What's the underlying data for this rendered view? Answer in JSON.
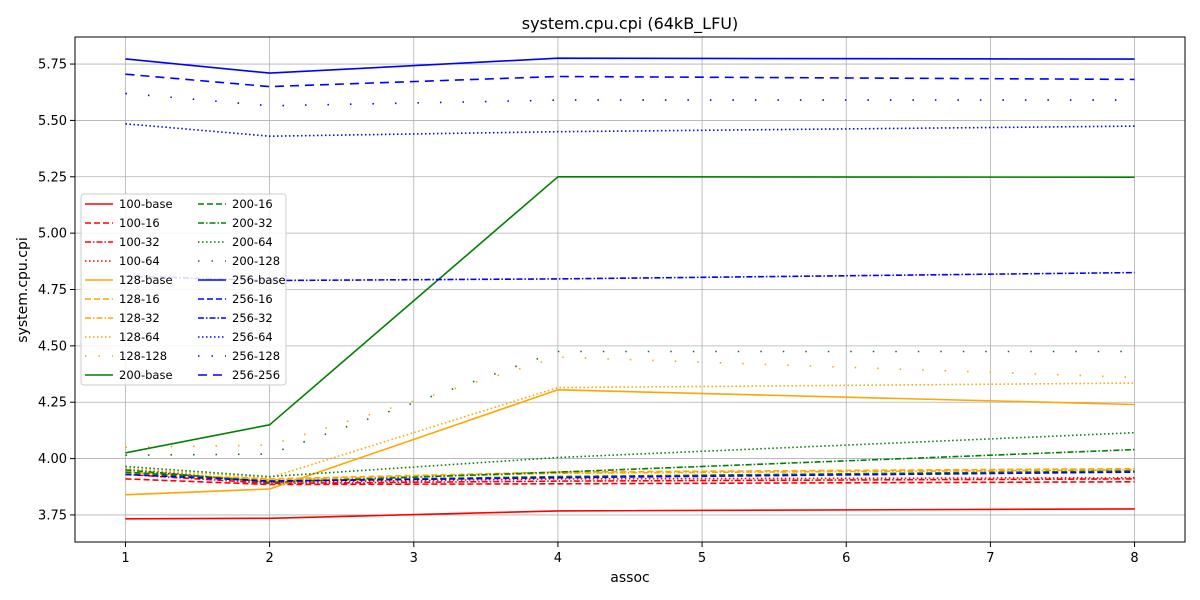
{
  "chart_data": {
    "type": "line",
    "title": "system.cpu.cpi (64kB_LFU)",
    "xlabel": "assoc",
    "ylabel": "system.cpu.cpi",
    "x": [
      1,
      2,
      4,
      8
    ],
    "xticks": [
      "1",
      "2",
      "3",
      "4",
      "5",
      "6",
      "7",
      "8"
    ],
    "yticks": [
      "3.75",
      "4.00",
      "4.25",
      "4.50",
      "4.75",
      "5.00",
      "5.25",
      "5.50",
      "5.75"
    ],
    "xlim": [
      0.65,
      8.35
    ],
    "ylim": [
      3.63,
      5.87
    ],
    "grid": true,
    "legend_placement": "center-left",
    "series": [
      {
        "name": "100-base",
        "color": "#ff0000",
        "style": "solid",
        "values": [
          3.733,
          3.735,
          3.768,
          3.777
        ]
      },
      {
        "name": "100-16",
        "color": "#ff0000",
        "style": "dashed",
        "values": [
          3.91,
          3.885,
          3.888,
          3.897
        ]
      },
      {
        "name": "100-32",
        "color": "#ff0000",
        "style": "dashdot",
        "values": [
          3.93,
          3.89,
          3.9,
          3.91
        ]
      },
      {
        "name": "100-64",
        "color": "#ff0000",
        "style": "dotted",
        "values": [
          3.955,
          3.895,
          3.91,
          3.915
        ]
      },
      {
        "name": "128-base",
        "color": "#ffa500",
        "style": "solid",
        "values": [
          3.84,
          3.865,
          4.305,
          4.24
        ]
      },
      {
        "name": "128-16",
        "color": "#ffa500",
        "style": "dashed",
        "values": [
          3.935,
          3.91,
          3.94,
          3.955
        ]
      },
      {
        "name": "128-32",
        "color": "#ffa500",
        "style": "dashdot",
        "values": [
          3.94,
          3.905,
          3.935,
          3.95
        ]
      },
      {
        "name": "128-64",
        "color": "#ffa500",
        "style": "dotted",
        "values": [
          3.955,
          3.915,
          4.315,
          4.335
        ]
      },
      {
        "name": "128-128",
        "color": "#ffa500",
        "style": "sparse",
        "values": [
          4.05,
          4.06,
          4.45,
          4.36
        ]
      },
      {
        "name": "200-base",
        "color": "#008000",
        "style": "solid",
        "values": [
          4.025,
          4.15,
          5.25,
          5.248
        ]
      },
      {
        "name": "200-16",
        "color": "#008000",
        "style": "dashed",
        "values": [
          3.94,
          3.9,
          3.92,
          3.945
        ]
      },
      {
        "name": "200-32",
        "color": "#008000",
        "style": "dashdot",
        "values": [
          3.95,
          3.895,
          3.94,
          4.04
        ]
      },
      {
        "name": "200-64",
        "color": "#008000",
        "style": "dotted",
        "values": [
          3.965,
          3.92,
          4.005,
          4.115
        ]
      },
      {
        "name": "200-128",
        "color": "#008000",
        "style": "sparse",
        "values": [
          4.015,
          4.02,
          4.475,
          4.475
        ]
      },
      {
        "name": "256-base",
        "color": "#0000ff",
        "style": "solid",
        "values": [
          5.773,
          5.71,
          5.776,
          5.772
        ]
      },
      {
        "name": "256-16",
        "color": "#0000ff",
        "style": "dashed",
        "values": [
          3.93,
          3.9,
          3.915,
          3.94
        ]
      },
      {
        "name": "256-32",
        "color": "#0000ff",
        "style": "dashdot",
        "values": [
          4.81,
          4.79,
          4.797,
          4.825
        ]
      },
      {
        "name": "256-64",
        "color": "#0000ff",
        "style": "dotted",
        "values": [
          5.485,
          5.43,
          5.45,
          5.475
        ]
      },
      {
        "name": "256-128",
        "color": "#0000ff",
        "style": "sparse",
        "values": [
          5.62,
          5.565,
          5.59,
          5.59
        ]
      },
      {
        "name": "256-256",
        "color": "#0000ff",
        "style": "longdash",
        "values": [
          5.705,
          5.65,
          5.695,
          5.682
        ]
      }
    ]
  }
}
